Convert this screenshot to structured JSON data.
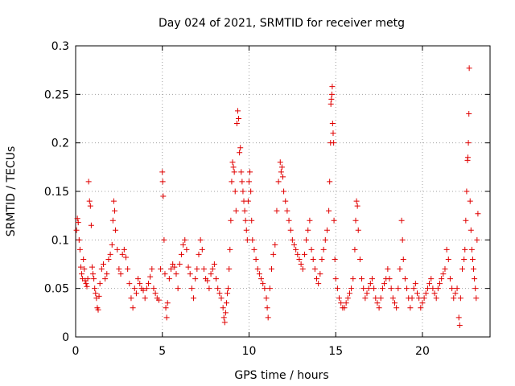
{
  "chart_data": {
    "type": "scatter",
    "title": "Day 024 of 2021, SRMTID for receiver metg",
    "xlabel": "GPS time / hours",
    "ylabel": "SRMTID / TECUs",
    "xlim": [
      0,
      23.9
    ],
    "ylim": [
      0,
      0.3
    ],
    "xticks": [
      0,
      5,
      10,
      15,
      20
    ],
    "yticks": [
      0,
      0.05,
      0.1,
      0.15,
      0.2,
      0.25,
      0.3
    ],
    "xtick_labels": [
      "0",
      "5",
      "10",
      "15",
      "20"
    ],
    "ytick_labels": [
      "0",
      "0.05",
      "0.1",
      "0.15",
      "0.2",
      "0.25",
      "0.3"
    ],
    "grid": true,
    "marker": "+",
    "color": "#e00000",
    "series": [
      {
        "name": "SRMTID",
        "points": [
          [
            0.05,
            0.11
          ],
          [
            0.1,
            0.122
          ],
          [
            0.15,
            0.118
          ],
          [
            0.2,
            0.1
          ],
          [
            0.25,
            0.09
          ],
          [
            0.3,
            0.072
          ],
          [
            0.35,
            0.065
          ],
          [
            0.4,
            0.06
          ],
          [
            0.45,
            0.08
          ],
          [
            0.5,
            0.07
          ],
          [
            0.55,
            0.058
          ],
          [
            0.6,
            0.055
          ],
          [
            0.65,
            0.052
          ],
          [
            0.7,
            0.06
          ],
          [
            0.75,
            0.16
          ],
          [
            0.8,
            0.14
          ],
          [
            0.85,
            0.135
          ],
          [
            0.9,
            0.115
          ],
          [
            0.95,
            0.072
          ],
          [
            1.0,
            0.065
          ],
          [
            1.05,
            0.06
          ],
          [
            1.1,
            0.05
          ],
          [
            1.15,
            0.045
          ],
          [
            1.2,
            0.04
          ],
          [
            1.25,
            0.03
          ],
          [
            1.3,
            0.028
          ],
          [
            1.35,
            0.042
          ],
          [
            1.4,
            0.055
          ],
          [
            1.5,
            0.07
          ],
          [
            1.6,
            0.075
          ],
          [
            1.7,
            0.06
          ],
          [
            1.8,
            0.065
          ],
          [
            1.9,
            0.08
          ],
          [
            2.0,
            0.085
          ],
          [
            2.1,
            0.095
          ],
          [
            2.15,
            0.12
          ],
          [
            2.2,
            0.14
          ],
          [
            2.25,
            0.13
          ],
          [
            2.3,
            0.11
          ],
          [
            2.4,
            0.09
          ],
          [
            2.5,
            0.07
          ],
          [
            2.6,
            0.065
          ],
          [
            2.7,
            0.085
          ],
          [
            2.8,
            0.09
          ],
          [
            2.9,
            0.082
          ],
          [
            3.0,
            0.07
          ],
          [
            3.1,
            0.055
          ],
          [
            3.2,
            0.04
          ],
          [
            3.3,
            0.03
          ],
          [
            3.4,
            0.05
          ],
          [
            3.5,
            0.045
          ],
          [
            3.6,
            0.06
          ],
          [
            3.7,
            0.055
          ],
          [
            3.8,
            0.05
          ],
          [
            3.9,
            0.048
          ],
          [
            4.0,
            0.04
          ],
          [
            4.1,
            0.05
          ],
          [
            4.2,
            0.055
          ],
          [
            4.3,
            0.062
          ],
          [
            4.4,
            0.07
          ],
          [
            4.5,
            0.05
          ],
          [
            4.6,
            0.045
          ],
          [
            4.7,
            0.04
          ],
          [
            4.8,
            0.038
          ],
          [
            4.9,
            0.07
          ],
          [
            5.0,
            0.17
          ],
          [
            5.02,
            0.16
          ],
          [
            5.05,
            0.145
          ],
          [
            5.1,
            0.1
          ],
          [
            5.15,
            0.065
          ],
          [
            5.2,
            0.03
          ],
          [
            5.25,
            0.02
          ],
          [
            5.3,
            0.035
          ],
          [
            5.4,
            0.06
          ],
          [
            5.5,
            0.07
          ],
          [
            5.6,
            0.075
          ],
          [
            5.7,
            0.072
          ],
          [
            5.8,
            0.065
          ],
          [
            5.9,
            0.05
          ],
          [
            6.0,
            0.075
          ],
          [
            6.1,
            0.085
          ],
          [
            6.2,
            0.095
          ],
          [
            6.3,
            0.1
          ],
          [
            6.4,
            0.09
          ],
          [
            6.5,
            0.072
          ],
          [
            6.6,
            0.065
          ],
          [
            6.7,
            0.05
          ],
          [
            6.8,
            0.04
          ],
          [
            6.9,
            0.06
          ],
          [
            7.0,
            0.07
          ],
          [
            7.1,
            0.085
          ],
          [
            7.2,
            0.1
          ],
          [
            7.3,
            0.09
          ],
          [
            7.4,
            0.07
          ],
          [
            7.5,
            0.06
          ],
          [
            7.6,
            0.058
          ],
          [
            7.7,
            0.05
          ],
          [
            7.8,
            0.065
          ],
          [
            7.9,
            0.07
          ],
          [
            8.0,
            0.075
          ],
          [
            8.1,
            0.06
          ],
          [
            8.2,
            0.05
          ],
          [
            8.3,
            0.045
          ],
          [
            8.4,
            0.04
          ],
          [
            8.5,
            0.03
          ],
          [
            8.55,
            0.02
          ],
          [
            8.6,
            0.015
          ],
          [
            8.65,
            0.025
          ],
          [
            8.7,
            0.035
          ],
          [
            8.75,
            0.045
          ],
          [
            8.8,
            0.05
          ],
          [
            8.85,
            0.07
          ],
          [
            8.9,
            0.09
          ],
          [
            8.95,
            0.12
          ],
          [
            9.0,
            0.16
          ],
          [
            9.05,
            0.18
          ],
          [
            9.1,
            0.175
          ],
          [
            9.15,
            0.17
          ],
          [
            9.2,
            0.15
          ],
          [
            9.25,
            0.13
          ],
          [
            9.3,
            0.22
          ],
          [
            9.35,
            0.233
          ],
          [
            9.4,
            0.225
          ],
          [
            9.45,
            0.19
          ],
          [
            9.5,
            0.195
          ],
          [
            9.55,
            0.17
          ],
          [
            9.6,
            0.16
          ],
          [
            9.65,
            0.15
          ],
          [
            9.7,
            0.14
          ],
          [
            9.75,
            0.13
          ],
          [
            9.8,
            0.12
          ],
          [
            9.85,
            0.11
          ],
          [
            9.9,
            0.1
          ],
          [
            9.95,
            0.14
          ],
          [
            10.0,
            0.16
          ],
          [
            10.05,
            0.17
          ],
          [
            10.1,
            0.15
          ],
          [
            10.15,
            0.12
          ],
          [
            10.2,
            0.1
          ],
          [
            10.3,
            0.09
          ],
          [
            10.4,
            0.08
          ],
          [
            10.5,
            0.07
          ],
          [
            10.6,
            0.065
          ],
          [
            10.7,
            0.06
          ],
          [
            10.8,
            0.055
          ],
          [
            10.9,
            0.05
          ],
          [
            11.0,
            0.04
          ],
          [
            11.05,
            0.03
          ],
          [
            11.1,
            0.02
          ],
          [
            11.2,
            0.05
          ],
          [
            11.3,
            0.07
          ],
          [
            11.4,
            0.085
          ],
          [
            11.5,
            0.095
          ],
          [
            11.6,
            0.13
          ],
          [
            11.7,
            0.16
          ],
          [
            11.8,
            0.18
          ],
          [
            11.85,
            0.17
          ],
          [
            11.9,
            0.175
          ],
          [
            11.95,
            0.165
          ],
          [
            12.0,
            0.15
          ],
          [
            12.1,
            0.14
          ],
          [
            12.2,
            0.13
          ],
          [
            12.3,
            0.12
          ],
          [
            12.4,
            0.11
          ],
          [
            12.5,
            0.1
          ],
          [
            12.6,
            0.095
          ],
          [
            12.7,
            0.09
          ],
          [
            12.8,
            0.085
          ],
          [
            12.9,
            0.08
          ],
          [
            13.0,
            0.075
          ],
          [
            13.1,
            0.07
          ],
          [
            13.2,
            0.085
          ],
          [
            13.3,
            0.1
          ],
          [
            13.4,
            0.11
          ],
          [
            13.5,
            0.12
          ],
          [
            13.6,
            0.09
          ],
          [
            13.7,
            0.08
          ],
          [
            13.8,
            0.07
          ],
          [
            13.9,
            0.06
          ],
          [
            14.0,
            0.055
          ],
          [
            14.1,
            0.065
          ],
          [
            14.2,
            0.08
          ],
          [
            14.3,
            0.09
          ],
          [
            14.4,
            0.1
          ],
          [
            14.5,
            0.11
          ],
          [
            14.6,
            0.13
          ],
          [
            14.65,
            0.16
          ],
          [
            14.7,
            0.2
          ],
          [
            14.72,
            0.24
          ],
          [
            14.75,
            0.245
          ],
          [
            14.78,
            0.25
          ],
          [
            14.8,
            0.258
          ],
          [
            14.82,
            0.22
          ],
          [
            14.85,
            0.21
          ],
          [
            14.88,
            0.2
          ],
          [
            14.9,
            0.12
          ],
          [
            14.95,
            0.08
          ],
          [
            15.0,
            0.06
          ],
          [
            15.1,
            0.05
          ],
          [
            15.2,
            0.04
          ],
          [
            15.3,
            0.035
          ],
          [
            15.4,
            0.03
          ],
          [
            15.5,
            0.03
          ],
          [
            15.6,
            0.035
          ],
          [
            15.7,
            0.04
          ],
          [
            15.8,
            0.045
          ],
          [
            15.9,
            0.05
          ],
          [
            16.0,
            0.06
          ],
          [
            16.1,
            0.09
          ],
          [
            16.15,
            0.12
          ],
          [
            16.2,
            0.14
          ],
          [
            16.25,
            0.135
          ],
          [
            16.3,
            0.11
          ],
          [
            16.4,
            0.08
          ],
          [
            16.5,
            0.06
          ],
          [
            16.6,
            0.05
          ],
          [
            16.7,
            0.04
          ],
          [
            16.8,
            0.045
          ],
          [
            16.9,
            0.05
          ],
          [
            17.0,
            0.055
          ],
          [
            17.1,
            0.06
          ],
          [
            17.2,
            0.05
          ],
          [
            17.3,
            0.04
          ],
          [
            17.4,
            0.035
          ],
          [
            17.5,
            0.03
          ],
          [
            17.6,
            0.04
          ],
          [
            17.7,
            0.05
          ],
          [
            17.8,
            0.055
          ],
          [
            17.9,
            0.06
          ],
          [
            18.0,
            0.07
          ],
          [
            18.1,
            0.06
          ],
          [
            18.2,
            0.05
          ],
          [
            18.3,
            0.04
          ],
          [
            18.4,
            0.035
          ],
          [
            18.5,
            0.03
          ],
          [
            18.6,
            0.05
          ],
          [
            18.7,
            0.07
          ],
          [
            18.8,
            0.12
          ],
          [
            18.85,
            0.1
          ],
          [
            18.9,
            0.08
          ],
          [
            19.0,
            0.06
          ],
          [
            19.1,
            0.05
          ],
          [
            19.2,
            0.04
          ],
          [
            19.3,
            0.03
          ],
          [
            19.4,
            0.04
          ],
          [
            19.5,
            0.05
          ],
          [
            19.6,
            0.055
          ],
          [
            19.7,
            0.045
          ],
          [
            19.8,
            0.04
          ],
          [
            19.9,
            0.03
          ],
          [
            20.0,
            0.035
          ],
          [
            20.1,
            0.04
          ],
          [
            20.2,
            0.045
          ],
          [
            20.3,
            0.05
          ],
          [
            20.4,
            0.055
          ],
          [
            20.5,
            0.06
          ],
          [
            20.6,
            0.05
          ],
          [
            20.7,
            0.045
          ],
          [
            20.8,
            0.04
          ],
          [
            20.9,
            0.05
          ],
          [
            21.0,
            0.055
          ],
          [
            21.1,
            0.06
          ],
          [
            21.2,
            0.065
          ],
          [
            21.3,
            0.07
          ],
          [
            21.4,
            0.09
          ],
          [
            21.5,
            0.08
          ],
          [
            21.6,
            0.06
          ],
          [
            21.7,
            0.05
          ],
          [
            21.8,
            0.04
          ],
          [
            21.9,
            0.045
          ],
          [
            22.0,
            0.05
          ],
          [
            22.1,
            0.02
          ],
          [
            22.15,
            0.012
          ],
          [
            22.2,
            0.04
          ],
          [
            22.3,
            0.07
          ],
          [
            22.4,
            0.08
          ],
          [
            22.45,
            0.09
          ],
          [
            22.5,
            0.12
          ],
          [
            22.55,
            0.15
          ],
          [
            22.6,
            0.182
          ],
          [
            22.62,
            0.185
          ],
          [
            22.65,
            0.2
          ],
          [
            22.68,
            0.23
          ],
          [
            22.7,
            0.277
          ],
          [
            22.75,
            0.14
          ],
          [
            22.8,
            0.11
          ],
          [
            22.85,
            0.09
          ],
          [
            22.9,
            0.08
          ],
          [
            22.95,
            0.07
          ],
          [
            23.0,
            0.06
          ],
          [
            23.05,
            0.05
          ],
          [
            23.1,
            0.04
          ],
          [
            23.15,
            0.1
          ],
          [
            23.2,
            0.127
          ]
        ]
      }
    ]
  }
}
